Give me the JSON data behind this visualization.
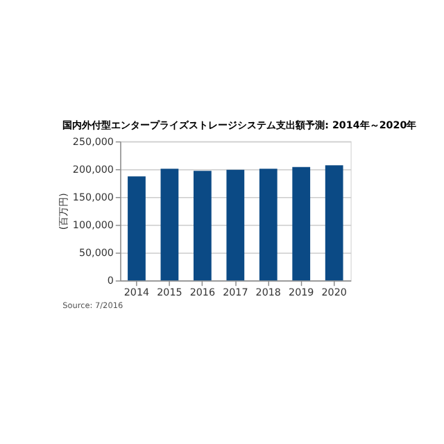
{
  "chart_data": {
    "type": "bar",
    "title": "国内外付型エンタープライズストレージシステム支出額予測: 2014年～2020年",
    "ylabel": "(百万円)",
    "categories": [
      "2014",
      "2015",
      "2016",
      "2017",
      "2018",
      "2019",
      "2020"
    ],
    "values": [
      187000,
      201000,
      197000,
      199000,
      201000,
      204000,
      207000
    ],
    "color": "#0b4a85",
    "ylim": [
      0,
      250000
    ],
    "yticks": [
      0,
      {
        "value": 50000,
        "label": "50,000"
      },
      {
        "value": 100000,
        "label": "100,000"
      },
      {
        "value": 150000,
        "label": "150,000"
      },
      {
        "value": 200000,
        "label": "200,000"
      },
      {
        "value": 250000,
        "label": "250,000"
      }
    ],
    "grid": "y",
    "annotations": [
      "Source: 7/2016"
    ]
  }
}
